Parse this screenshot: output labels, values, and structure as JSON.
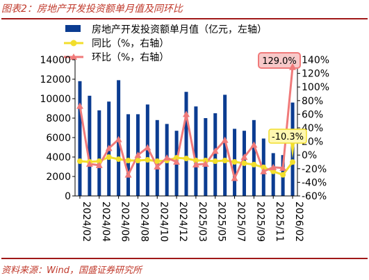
{
  "figure": {
    "title": "图表2：房地产开发投资额单月值及同环比",
    "source": "资料来源：Wind，国盛证券研究所"
  },
  "colors": {
    "bar": "#0b3c91",
    "yoy": "#f2de2c",
    "mom": "#f07a7a",
    "rule": "#a01818",
    "title": "#c0392b"
  },
  "chart_data": {
    "type": "bar",
    "categories": [
      "2024/02",
      "2024/03",
      "2024/04",
      "2024/05",
      "2024/06",
      "2024/07",
      "2024/08",
      "2024/09",
      "2024/10",
      "2024/11",
      "2024/12",
      "2025/01",
      "2025/03",
      "2025/04",
      "2025/05",
      "2025/06",
      "2025/07",
      "2025/08",
      "2025/09",
      "2025/10",
      "2025/11",
      "2025/12",
      "2026/02"
    ],
    "xtick_labels": [
      "2024/02",
      "2024/04",
      "2024/06",
      "2024/08",
      "2024/10",
      "2024/12",
      "2025/03",
      "2025/05",
      "2025/07",
      "2025/09",
      "2025/11",
      "2026/02"
    ],
    "series": [
      {
        "name": "房地产开发投资额单月值（亿元，左轴）",
        "kind": "bar",
        "axis": "left",
        "values": [
          11800,
          10300,
          8800,
          9700,
          11900,
          8400,
          8400,
          9400,
          7800,
          7400,
          6700,
          10700,
          9200,
          8000,
          8500,
          10400,
          6900,
          6700,
          7800,
          5900,
          4400,
          4200,
          9600
        ]
      },
      {
        "name": "同比（%，右轴）",
        "kind": "line",
        "axis": "right",
        "marker": "circle",
        "values": [
          -9,
          -10,
          -9,
          -3,
          -6,
          -8,
          -8,
          -7,
          -9,
          -8,
          -4,
          -5,
          -8,
          -8,
          -9,
          -8,
          -10,
          -12,
          -14,
          -18,
          -24,
          -29,
          -10.3
        ]
      },
      {
        "name": "环比（%，右轴）",
        "kind": "line",
        "axis": "right",
        "marker": "triangle",
        "values": [
          72,
          -13,
          -15,
          10,
          23,
          -29,
          0,
          11,
          -17,
          -4,
          -10,
          60,
          -14,
          -13,
          6,
          22,
          -34,
          -3,
          15,
          -24,
          -18,
          -19,
          129.0
        ]
      }
    ],
    "left_axis": {
      "ylim": [
        0,
        14000
      ],
      "ticks": [
        "0",
        "2000",
        "4000",
        "6000",
        "8000",
        "10000",
        "12000",
        "14000"
      ]
    },
    "right_axis": {
      "ylim": [
        -60,
        140
      ],
      "ticks": [
        "-60%",
        "-40%",
        "-20%",
        "0%",
        "20%",
        "40%",
        "60%",
        "80%",
        "100%",
        "120%",
        "140%"
      ]
    },
    "annotations": [
      {
        "text": "129.0%",
        "series": "环比（%，右轴）",
        "index": 22
      },
      {
        "text": "-10.3%",
        "series": "同比（%，右轴）",
        "index": 22
      }
    ],
    "legend": "top",
    "grid": false
  }
}
